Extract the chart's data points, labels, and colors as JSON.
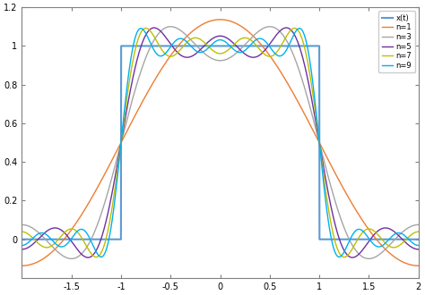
{
  "title": "",
  "xlim": [
    -2,
    2
  ],
  "ylim": [
    -0.2,
    1.2
  ],
  "xticks": [
    -1.5,
    -1,
    -0.5,
    0,
    0.5,
    1,
    1.5,
    2
  ],
  "yticks": [
    0,
    0.2,
    0.4,
    0.6,
    0.8,
    1,
    1.2
  ],
  "colors": {
    "xt": "#5B9BD5",
    "n1": "#ED7D31",
    "n3": "#A5A5A5",
    "n5": "#7030A0",
    "n7": "#BFBF00",
    "n9": "#00B0F0"
  },
  "legend_labels": [
    "x(t)",
    "n=1",
    "n=3",
    "n=5",
    "n=7",
    "n=9"
  ],
  "n_values": [
    1,
    3,
    5,
    7,
    9
  ],
  "T": 4,
  "figsize": [
    4.74,
    3.3
  ],
  "dpi": 100
}
